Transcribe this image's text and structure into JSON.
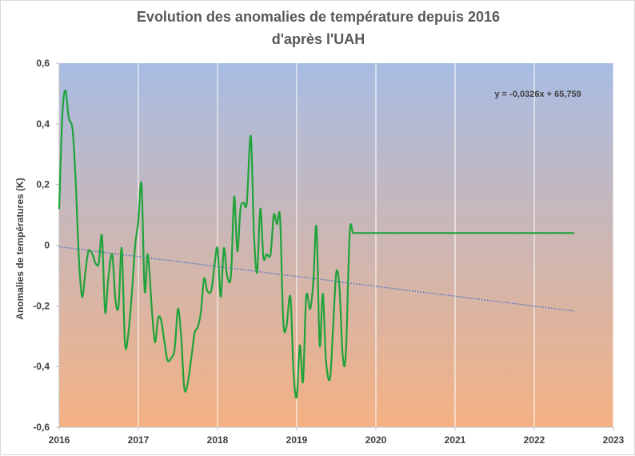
{
  "chart_data": {
    "type": "line",
    "title_line1": "Evolution  des anomalies  de  température  depuis  2016",
    "title_line2": "d'après  l'UAH",
    "xlabel": "",
    "ylabel": "Anomalies de températures (K)",
    "xlim": [
      2016,
      2023
    ],
    "ylim": [
      -0.6,
      0.6
    ],
    "xticks": [
      2016,
      2017,
      2018,
      2019,
      2020,
      2021,
      2022,
      2023
    ],
    "yticks": [
      -0.6,
      -0.4,
      -0.2,
      0,
      0.2,
      0.4,
      0.6
    ],
    "xtick_labels": [
      "2016",
      "2017",
      "2018",
      "2019",
      "2020",
      "2021",
      "2022",
      "2023"
    ],
    "ytick_labels": [
      "-0,6",
      "-0,4",
      "-0,2",
      "0",
      "0,2",
      "0,4",
      "0,6"
    ],
    "grid": "vertical",
    "background_gradient": {
      "top": "#a7bce3",
      "bottom": "#f4b183"
    },
    "series": [
      {
        "color": "#1fa33a",
        "x": [
          2016.0,
          2016.04,
          2016.08,
          2016.12,
          2016.17,
          2016.21,
          2016.25,
          2016.29,
          2016.33,
          2016.37,
          2016.42,
          2016.46,
          2016.5,
          2016.54,
          2016.58,
          2016.62,
          2016.67,
          2016.71,
          2016.75,
          2016.79,
          2016.83,
          2016.87,
          2016.92,
          2016.96,
          2017.0,
          2017.04,
          2017.08,
          2017.12,
          2017.17,
          2017.21,
          2017.25,
          2017.29,
          2017.33,
          2017.37,
          2017.42,
          2017.46,
          2017.5,
          2017.54,
          2017.58,
          2017.62,
          2017.67,
          2017.71,
          2017.75,
          2017.79,
          2017.83,
          2017.87,
          2017.92,
          2017.96,
          2018.0,
          2018.04,
          2018.08,
          2018.12,
          2018.17,
          2018.21,
          2018.25,
          2018.29,
          2018.33,
          2018.37,
          2018.42,
          2018.46,
          2018.5,
          2018.54,
          2018.58,
          2018.62,
          2018.67,
          2018.71,
          2018.75,
          2018.79,
          2018.83,
          2018.87,
          2018.92,
          2018.96,
          2019.0,
          2019.04,
          2019.08,
          2019.12,
          2019.17,
          2019.21,
          2019.25,
          2019.29,
          2019.33,
          2019.37,
          2019.42,
          2019.46,
          2019.5,
          2019.54,
          2019.58,
          2019.62,
          2019.67,
          2019.71,
          2019.75,
          2019.79,
          2019.83,
          2019.87,
          2019.92,
          2019.96,
          2020.0,
          2020.04,
          2020.08,
          2020.12,
          2020.17,
          2020.21,
          2020.25,
          2020.29,
          2020.33,
          2020.37,
          2020.42,
          2020.46,
          2020.5,
          2020.54,
          2020.58,
          2020.62,
          2020.67,
          2020.71,
          2020.75,
          2020.79,
          2020.83,
          2020.87,
          2020.92,
          2020.96,
          2021.0,
          2021.04,
          2021.08,
          2021.12,
          2021.17,
          2021.21,
          2021.25,
          2021.29,
          2021.33,
          2021.37,
          2021.42,
          2021.46,
          2021.5,
          2021.54,
          2021.58,
          2021.62,
          2021.67,
          2021.71,
          2021.75,
          2021.79,
          2021.83,
          2021.87,
          2021.92,
          2021.96,
          2022.0,
          2022.04,
          2022.08,
          2022.12,
          2022.17,
          2022.21,
          2022.25,
          2022.29,
          2022.33,
          2022.37,
          2022.42,
          2022.46,
          2022.5
        ],
        "values": [
          0.12,
          0.43,
          0.51,
          0.42,
          0.38,
          0.2,
          -0.05,
          -0.17,
          -0.09,
          -0.02,
          -0.03,
          -0.06,
          -0.06,
          0.03,
          -0.22,
          -0.11,
          -0.03,
          -0.18,
          -0.2,
          -0.01,
          -0.32,
          -0.3,
          -0.15,
          0.0,
          0.08,
          0.2,
          -0.15,
          -0.03,
          -0.21,
          -0.32,
          -0.24,
          -0.25,
          -0.32,
          -0.38,
          -0.37,
          -0.34,
          -0.21,
          -0.3,
          -0.47,
          -0.46,
          -0.37,
          -0.29,
          -0.27,
          -0.22,
          -0.11,
          -0.15,
          -0.15,
          -0.07,
          -0.01,
          -0.17,
          -0.01,
          -0.1,
          -0.1,
          0.16,
          -0.02,
          0.12,
          0.14,
          0.14,
          0.36,
          0.04,
          -0.09,
          0.12,
          -0.04,
          -0.03,
          -0.03,
          0.1,
          0.07,
          0.09,
          -0.25,
          -0.27,
          -0.17,
          -0.42,
          -0.5,
          -0.33,
          -0.45,
          -0.17,
          -0.21,
          -0.12,
          0.06,
          -0.33,
          -0.16,
          -0.38,
          -0.44,
          -0.27,
          -0.09,
          -0.14,
          -0.36,
          -0.36,
          0.04,
          0.04,
          0.04,
          0.04,
          0.04,
          0.04,
          0.04,
          0.04,
          0.04,
          0.04,
          0.04,
          0.04,
          0.04,
          0.04,
          0.04,
          0.04,
          0.04,
          0.04,
          0.04,
          0.04,
          0.04,
          0.04,
          0.04,
          0.04,
          0.04,
          0.04,
          0.04,
          0.04,
          0.04,
          0.04,
          0.04,
          0.04,
          0.04,
          0.04,
          0.04,
          0.04,
          0.04,
          0.04,
          0.04,
          0.04,
          0.04,
          0.04,
          0.04,
          0.04,
          0.04,
          0.04,
          0.04,
          0.04,
          0.04,
          0.04,
          0.04,
          0.04,
          0.04,
          0.04,
          0.04,
          0.04,
          0.04,
          0.04,
          0.04,
          0.04,
          0.04,
          0.04,
          0.04,
          0.04,
          0.04,
          0.04,
          0.04,
          0.04,
          0.04
        ]
      }
    ],
    "trendline": {
      "color": "#4472c4",
      "equation": "y = -0,0326x + 65,759",
      "x": [
        2016.0,
        2022.5
      ],
      "values": [
        -0.005,
        -0.217
      ]
    }
  }
}
